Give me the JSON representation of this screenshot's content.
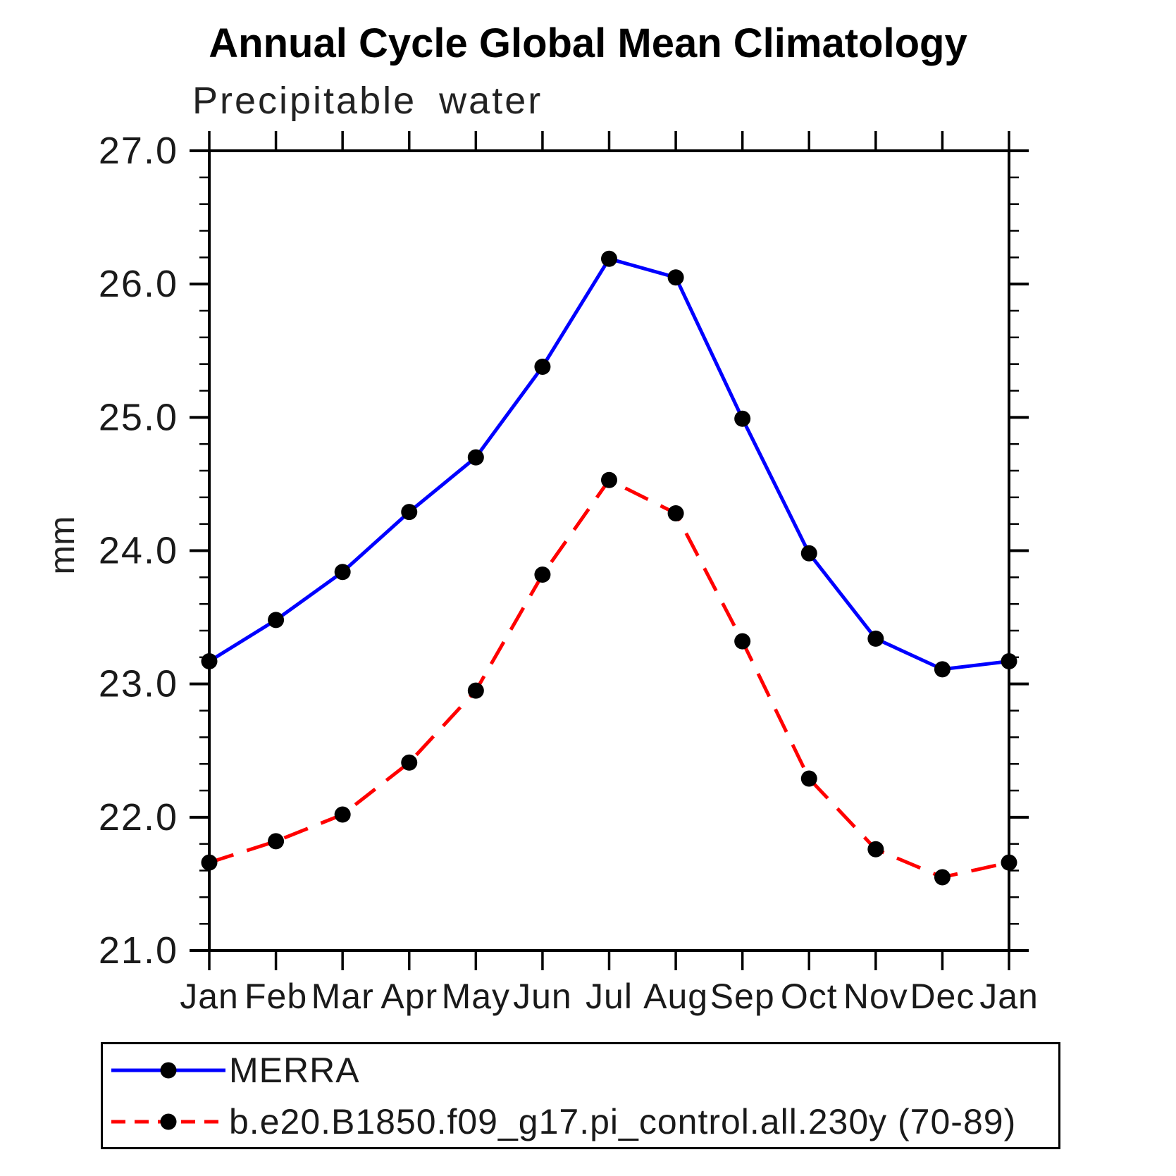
{
  "chart_data": {
    "type": "line",
    "title": "Annual Cycle Global Mean Climatology",
    "subtitle": "Precipitable water",
    "ylabel": "mm",
    "xlabel": "",
    "ylim": [
      21.0,
      27.0
    ],
    "ytick_step": 1.0,
    "yminor_step": 0.2,
    "grid": false,
    "legend_position": "bottom",
    "categories": [
      "Jan",
      "Feb",
      "Mar",
      "Apr",
      "May",
      "Jun",
      "Jul",
      "Aug",
      "Sep",
      "Oct",
      "Nov",
      "Dec",
      "Jan"
    ],
    "marker_color": "#000000",
    "axis_color": "#000000",
    "series": [
      {
        "name": "MERRA",
        "color": "#0000ff",
        "line_style": "solid",
        "values": [
          23.17,
          23.48,
          23.84,
          24.29,
          24.7,
          25.38,
          26.19,
          26.05,
          24.99,
          23.98,
          23.34,
          23.11,
          23.17
        ]
      },
      {
        "name": "b.e20.B1850.f09_g17.pi_control.all.230y (70-89)",
        "color": "#ff0000",
        "line_style": "dashed",
        "values": [
          21.66,
          21.82,
          22.02,
          22.41,
          22.95,
          23.82,
          24.53,
          24.28,
          23.32,
          22.29,
          21.76,
          21.55,
          21.66
        ]
      }
    ]
  }
}
